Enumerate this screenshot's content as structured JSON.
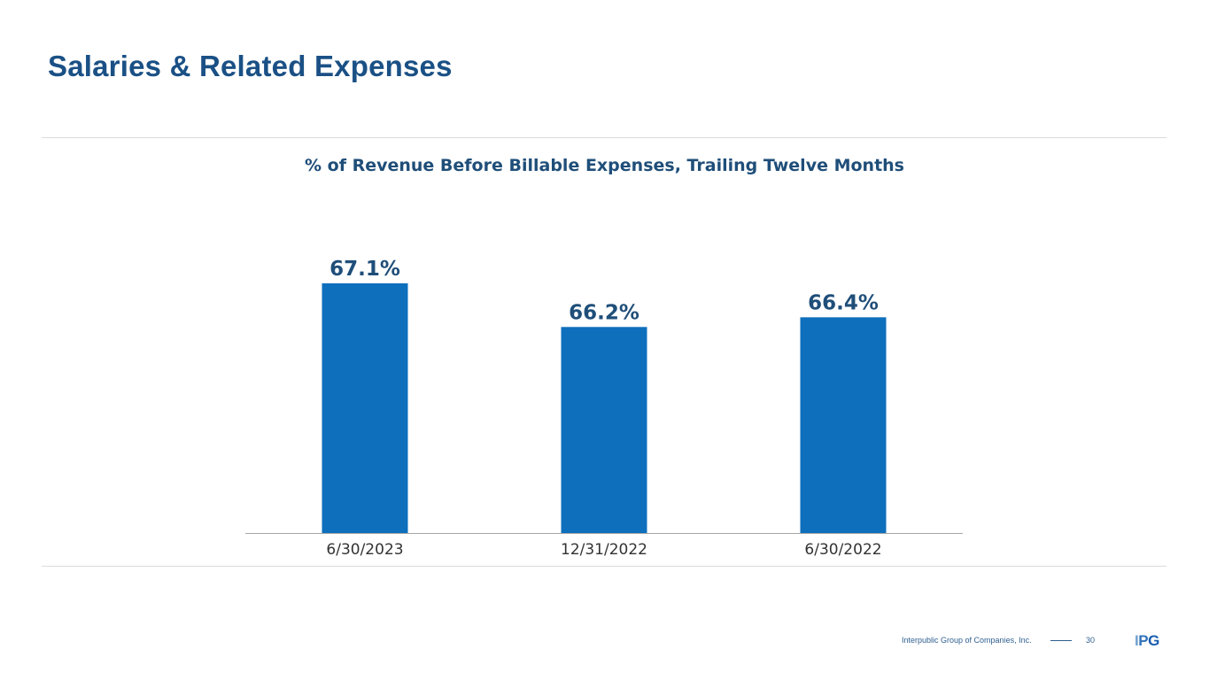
{
  "slide": {
    "title": "Salaries & Related Expenses",
    "company": "Interpublic Group of Companies, Inc.",
    "page_number": "30",
    "logo_letters": [
      "I",
      "P",
      "G"
    ]
  },
  "colors": {
    "title": "#1a5085",
    "bar": "#0e6fbd",
    "value_label": "#1f4e79",
    "axis": "#a6a6a6"
  },
  "chart_data": {
    "type": "bar",
    "title": "% of Revenue Before Billable Expenses, Trailing Twelve Months",
    "categories": [
      "6/30/2023",
      "12/31/2022",
      "6/30/2022"
    ],
    "values": [
      67.1,
      66.2,
      66.4
    ],
    "value_labels": [
      "67.1%",
      "66.2%",
      "66.4%"
    ],
    "xlabel": "",
    "ylabel": "",
    "ylim": [
      61.95,
      67.1
    ],
    "grid": false,
    "legend": "none"
  }
}
